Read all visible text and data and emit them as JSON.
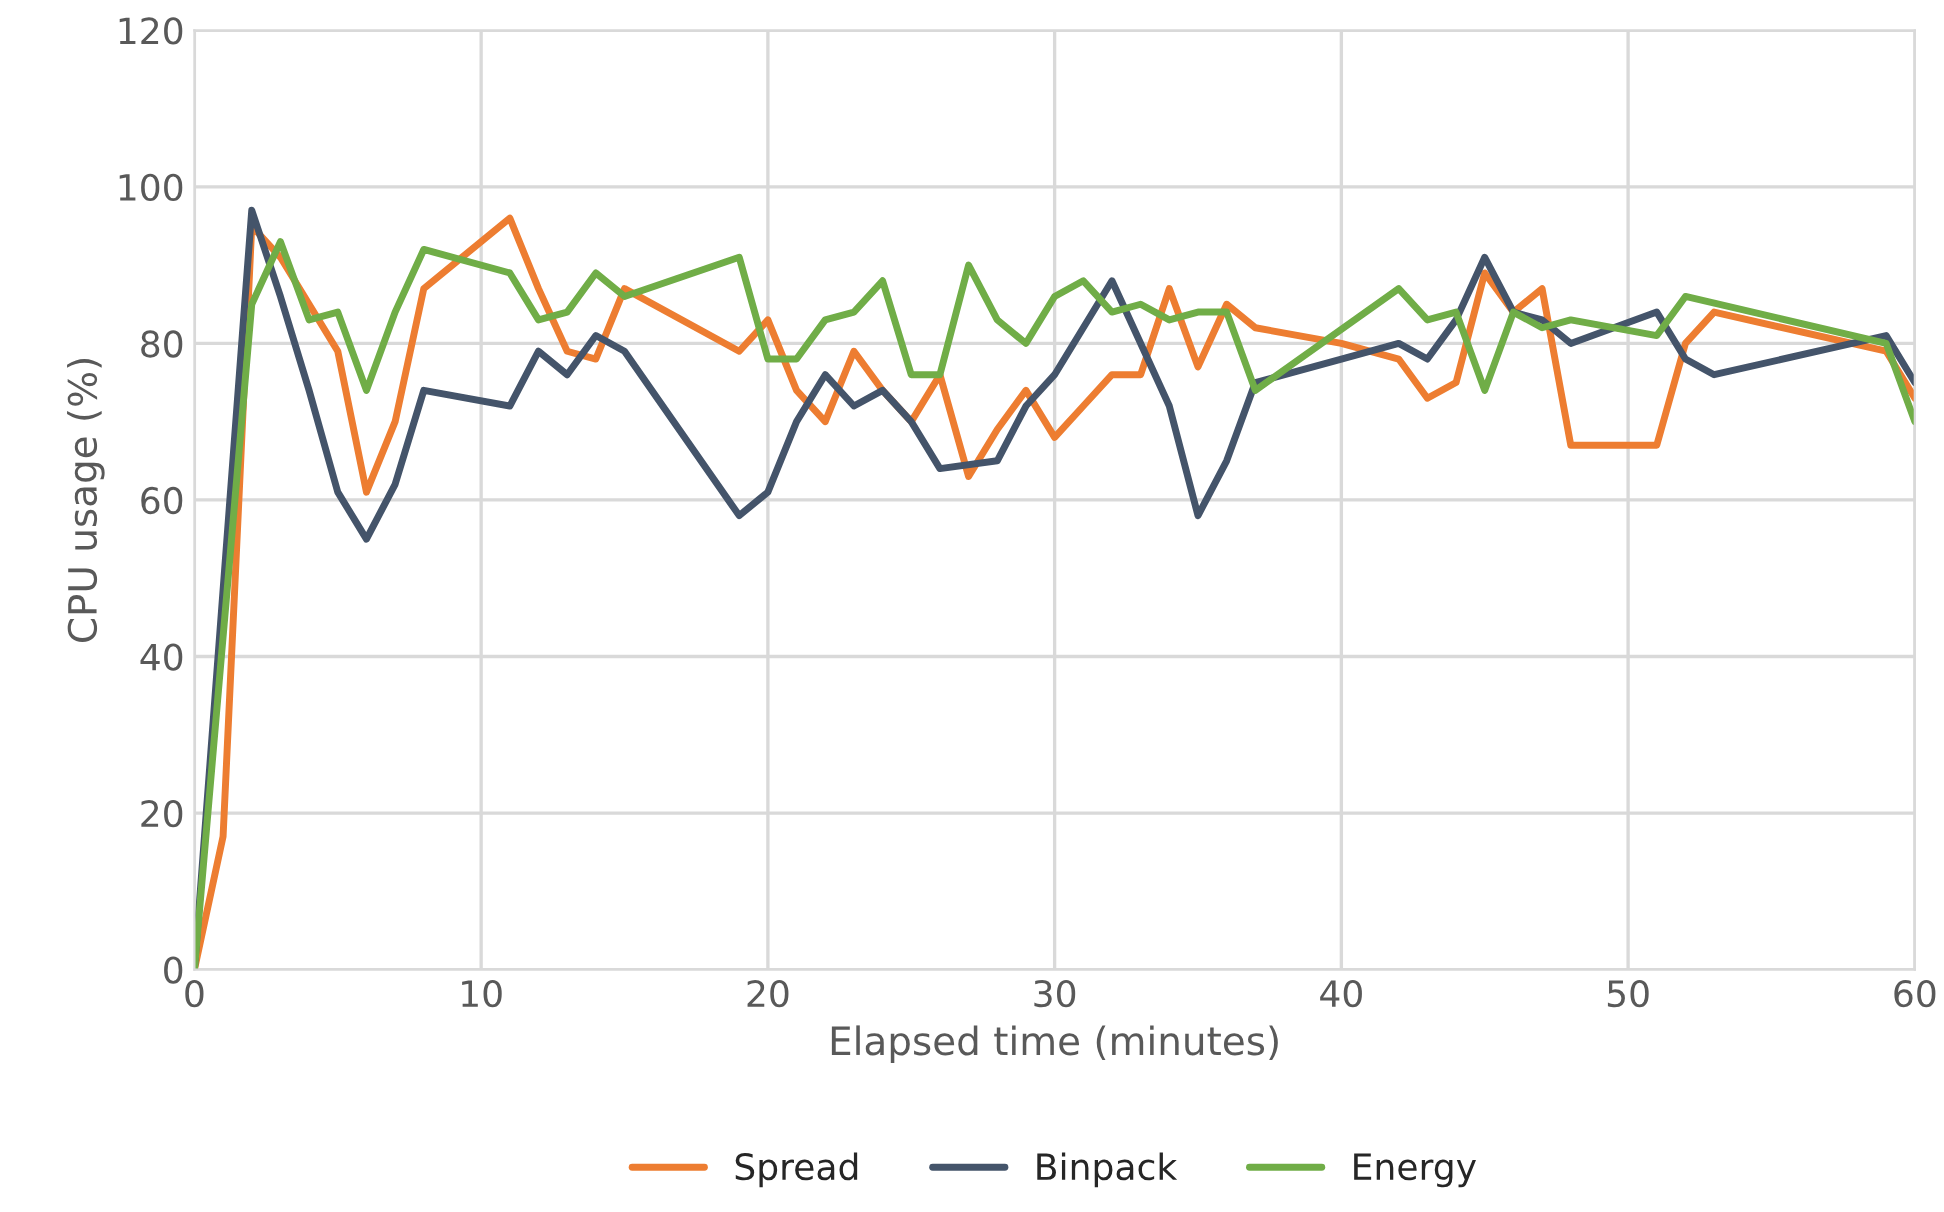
{
  "chart_data": {
    "type": "line",
    "xlabel": "Elapsed time (minutes)",
    "ylabel": "CPU usage (%)",
    "xlim": [
      0,
      60
    ],
    "xticks": [
      0,
      10,
      20,
      30,
      40,
      50,
      60
    ],
    "ylim": [
      0,
      120
    ],
    "yticks": [
      0,
      20,
      40,
      60,
      80,
      100,
      120
    ],
    "grid": true,
    "legend": "bottom",
    "marker": "none",
    "line_style": "solid",
    "series": [
      {
        "name": "Spread",
        "color": "#ed7d31",
        "x": [
          0,
          1,
          2,
          3,
          4,
          5,
          6,
          7,
          8,
          11,
          12,
          13,
          14,
          15,
          19,
          20,
          21,
          22,
          23,
          24,
          25,
          26,
          27,
          28,
          29,
          30,
          31,
          32,
          33,
          34,
          35,
          36,
          37,
          40,
          42,
          43,
          44,
          45,
          46,
          47,
          48,
          51,
          52,
          53,
          59,
          60
        ],
        "values": [
          0,
          17,
          95,
          91,
          85,
          79,
          61,
          70,
          87,
          96,
          87,
          79,
          78,
          87,
          79,
          83,
          74,
          70,
          79,
          74,
          70,
          76,
          63,
          69,
          74,
          68,
          72,
          76,
          76,
          87,
          77,
          85,
          82,
          80,
          78,
          73,
          75,
          89,
          84,
          87,
          67,
          67,
          80,
          84,
          79,
          73
        ]
      },
      {
        "name": "Binpack",
        "color": "#44546a",
        "x": [
          0,
          2,
          3,
          4,
          5,
          6,
          7,
          8,
          11,
          12,
          13,
          14,
          15,
          19,
          20,
          21,
          22,
          23,
          24,
          25,
          26,
          28,
          29,
          30,
          32,
          34,
          35,
          36,
          37,
          40,
          42,
          43,
          44,
          45,
          46,
          47,
          48,
          51,
          52,
          53,
          59,
          60
        ],
        "values": [
          0,
          97,
          86,
          74,
          61,
          55,
          62,
          74,
          72,
          79,
          76,
          81,
          79,
          58,
          61,
          70,
          76,
          72,
          74,
          70,
          64,
          65,
          72,
          76,
          88,
          72,
          58,
          65,
          75,
          78,
          80,
          78,
          83,
          91,
          84,
          83,
          80,
          84,
          78,
          76,
          81,
          75
        ]
      },
      {
        "name": "Energy",
        "color": "#70ad47",
        "x": [
          0,
          2,
          3,
          4,
          5,
          6,
          7,
          8,
          11,
          12,
          13,
          14,
          15,
          19,
          20,
          21,
          22,
          23,
          24,
          25,
          26,
          27,
          28,
          29,
          30,
          31,
          32,
          33,
          34,
          35,
          36,
          37,
          42,
          43,
          44,
          45,
          46,
          47,
          48,
          51,
          52,
          59,
          60
        ],
        "values": [
          0,
          85,
          93,
          83,
          84,
          74,
          84,
          92,
          89,
          83,
          84,
          89,
          86,
          91,
          78,
          78,
          83,
          84,
          88,
          76,
          76,
          90,
          83,
          80,
          86,
          88,
          84,
          85,
          83,
          84,
          84,
          74,
          87,
          83,
          84,
          74,
          84,
          82,
          83,
          81,
          86,
          80,
          70
        ]
      }
    ]
  }
}
